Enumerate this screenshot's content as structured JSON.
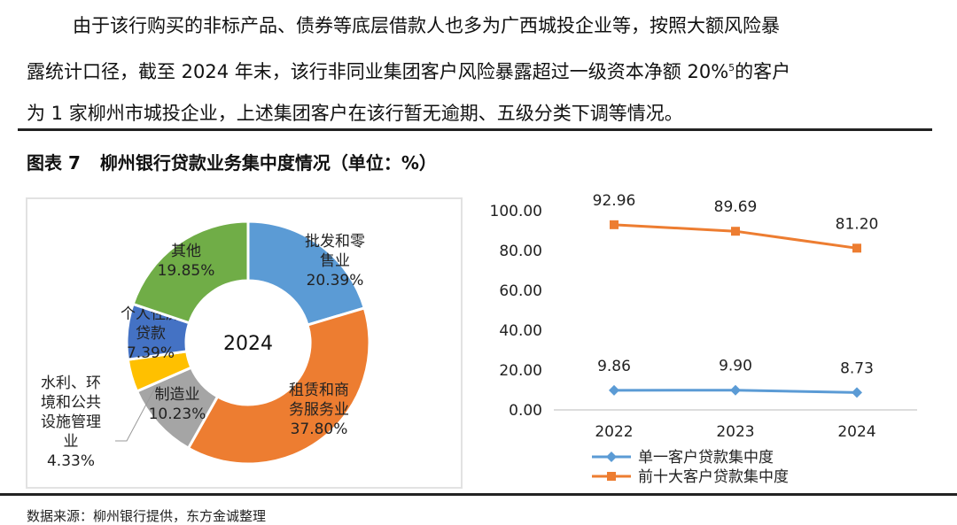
{
  "paragraph": {
    "line1": "由于该行购买的非标产品、债券等底层借款人也多为广西城投企业等，按照大额风险暴",
    "line2a": "露统计口径，截至 2024 年末，该行非同业集团客户风险暴露超过一级资本净额 20%",
    "footnote": "5",
    "line2b": "的客户",
    "line3": "为 1 家柳州市城投企业，上述集团客户在该行暂无逾期、五级分类下调等情况。"
  },
  "figure": {
    "number": "图表 7",
    "title": "柳州银行贷款业务集中度情况（单位：%）"
  },
  "source": "数据来源：柳州银行提供，东方金诚整理",
  "chart_data": [
    {
      "type": "pie",
      "variant": "donut",
      "center_label": "2024",
      "slices": [
        {
          "label": [
            "批发和零",
            "售业"
          ],
          "value": 20.39,
          "value_label": "20.39%",
          "color": "#5b9bd5"
        },
        {
          "label": [
            "租赁和商",
            "务服务业"
          ],
          "value": 37.8,
          "value_label": "37.80%",
          "color": "#ed7d31"
        },
        {
          "label": [
            "制造业"
          ],
          "value": 10.23,
          "value_label": "10.23%",
          "color": "#a5a5a5"
        },
        {
          "label": [
            "水利、环",
            "境和公共",
            "设施管理",
            "业"
          ],
          "value": 4.33,
          "value_label": "4.33%",
          "color": "#ffc000"
        },
        {
          "label": [
            "个人住房",
            "贷款"
          ],
          "value": 7.39,
          "value_label": "7.39%",
          "color": "#4472c4"
        },
        {
          "label": [
            "其他"
          ],
          "value": 19.85,
          "value_label": "19.85%",
          "color": "#70ad47"
        }
      ]
    },
    {
      "type": "line",
      "categories": [
        "2022",
        "2023",
        "2024"
      ],
      "ylim": [
        0,
        100
      ],
      "yticks": [
        "0.00",
        "20.00",
        "40.00",
        "60.00",
        "80.00",
        "100.00"
      ],
      "series": [
        {
          "name": "单一客户贷款集中度",
          "values": [
            9.86,
            9.9,
            8.73
          ],
          "labels": [
            "9.86",
            "9.90",
            "8.73"
          ],
          "color": "#5b9bd5",
          "marker": "diamond"
        },
        {
          "name": "前十大客户贷款集中度",
          "values": [
            92.96,
            89.69,
            81.2
          ],
          "labels": [
            "92.96",
            "89.69",
            "81.20"
          ],
          "color": "#ed7d31",
          "marker": "square"
        }
      ],
      "legend": "bottom"
    }
  ]
}
